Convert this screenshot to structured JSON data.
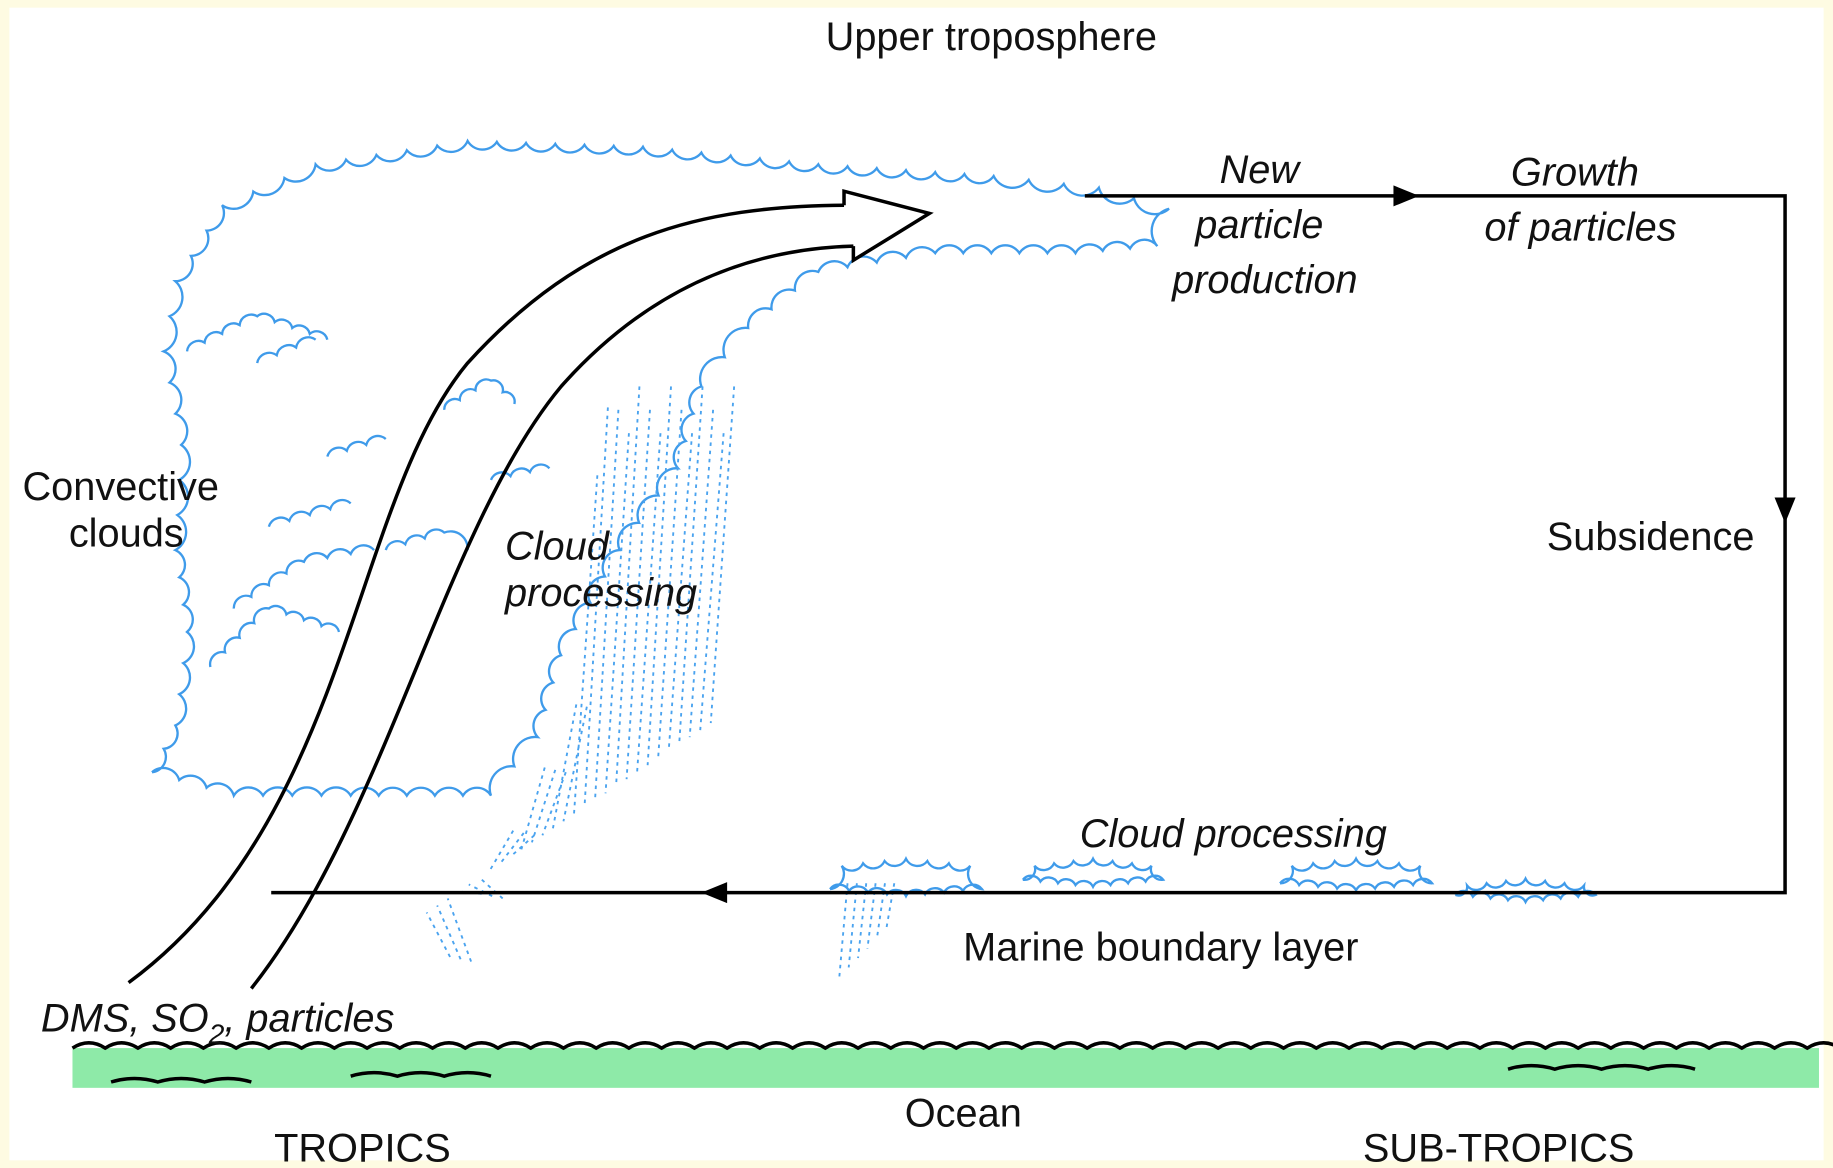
{
  "labels": {
    "upper": "Upper troposphere",
    "new_particle": [
      "New",
      "particle",
      "production"
    ],
    "growth": [
      "Growth",
      "of particles"
    ],
    "convective": [
      "Convective",
      "clouds"
    ],
    "cloud_processing_upper": [
      "Cloud",
      "processing"
    ],
    "subsidence": "Subsidence",
    "cloud_processing_lower": "Cloud processing",
    "marine": "Marine boundary layer",
    "sources": [
      "DMS, SO",
      "2",
      ", particles"
    ],
    "ocean": "Ocean",
    "tropics": "TROPICS",
    "subtropics": "SUB-TROPICS"
  }
}
